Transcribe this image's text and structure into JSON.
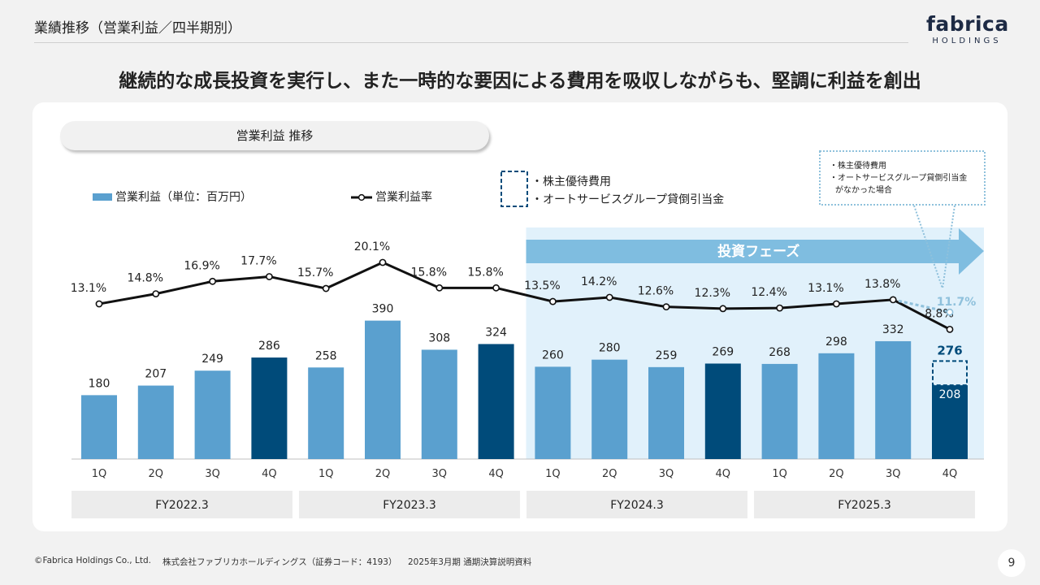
{
  "header": {
    "title": "業績推移（営業利益／四半期別）"
  },
  "logo": {
    "main": "fabrica",
    "sub": "HOLDINGS"
  },
  "headline": "継続的な成長投資を実行し、また一時的な要因による費用を吸収しながらも、堅調に利益を創出",
  "section_pill": "営業利益 推移",
  "legend": {
    "bar": "営業利益（単位：百万円）",
    "line": "営業利益率",
    "dashed_items": [
      "・株主優待費用",
      "・オートサービスグループ貸倒引当金"
    ]
  },
  "investment_phase_label": "投資フェーズ",
  "callout": {
    "lines": [
      "・株主優待費用",
      "・オートサービスグループ貸倒引当金",
      "がなかった場合"
    ]
  },
  "colors": {
    "light_bar": "#5aa0cf",
    "dark_bar": "#004b7a",
    "phase_bg": "#e1f1fb",
    "phase_arrow": "#7fbde0",
    "alt_line": "#8fc1dc"
  },
  "chart_data": {
    "type": "bar",
    "categories": [
      "1Q",
      "2Q",
      "3Q",
      "4Q",
      "1Q",
      "2Q",
      "3Q",
      "4Q",
      "1Q",
      "2Q",
      "3Q",
      "4Q",
      "1Q",
      "2Q",
      "3Q",
      "4Q"
    ],
    "fiscal_years": [
      "FY2022.3",
      "FY2023.3",
      "FY2024.3",
      "FY2025.3"
    ],
    "series": [
      {
        "name": "営業利益（単位：百万円）",
        "type": "bar",
        "values": [
          180,
          207,
          249,
          286,
          258,
          390,
          308,
          324,
          260,
          280,
          259,
          269,
          268,
          298,
          332,
          208
        ]
      },
      {
        "name": "営業利益率",
        "type": "line",
        "values": [
          13.1,
          14.8,
          16.9,
          17.7,
          15.7,
          20.1,
          15.8,
          15.8,
          13.5,
          14.2,
          12.6,
          12.3,
          12.4,
          13.1,
          13.8,
          8.8
        ],
        "labels": [
          "13.1%",
          "14.8%",
          "16.9%",
          "17.7%",
          "15.7%",
          "20.1%",
          "15.8%",
          "15.8%",
          "13.5%",
          "14.2%",
          "12.6%",
          "12.3%",
          "12.4%",
          "13.1%",
          "13.8%",
          "8.8%"
        ]
      }
    ],
    "adjusted_last_quarter": {
      "operating_profit": 276,
      "margin": 11.7,
      "margin_label": "11.7%",
      "profit_label": "276"
    },
    "dark_bar_indices": [
      3,
      7,
      11,
      15
    ],
    "investment_phase_start_index": 8
  },
  "footer": {
    "copyright": "©Fabrica Holdings Co., Ltd.",
    "company": "株式会社ファブリカホールディングス（証券コード：4193）",
    "doc": "2025年3月期 通期決算説明資料",
    "page": "9"
  }
}
